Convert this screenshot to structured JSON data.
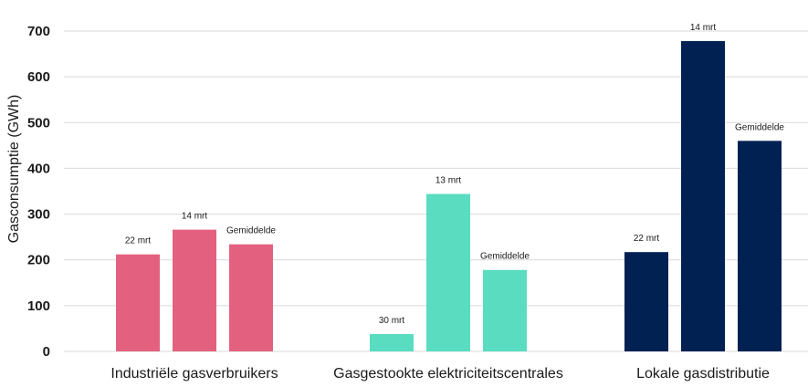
{
  "chart_data": {
    "type": "bar",
    "ylabel": "Gasconsumptie (GWh)",
    "ylim": [
      0,
      700
    ],
    "yticks": [
      0,
      100,
      200,
      300,
      400,
      500,
      600,
      700
    ],
    "grid": true,
    "groups": [
      {
        "category": "Industriële gasverbruikers",
        "color": "#e3617f",
        "bars": [
          {
            "label": "22 mrt",
            "value": 212
          },
          {
            "label": "14 mrt",
            "value": 266
          },
          {
            "label": "Gemiddelde",
            "value": 234
          }
        ]
      },
      {
        "category": "Gasgestookte elektriciteitscentrales",
        "color": "#5adcc1",
        "bars": [
          {
            "label": "30 mrt",
            "value": 38
          },
          {
            "label": "13 mrt",
            "value": 344
          },
          {
            "label": "Gemiddelde",
            "value": 178
          }
        ]
      },
      {
        "category": "Lokale gasdistributie",
        "color": "#002152",
        "bars": [
          {
            "label": "22 mrt",
            "value": 217
          },
          {
            "label": "14 mrt",
            "value": 678
          },
          {
            "label": "Gemiddelde",
            "value": 460
          }
        ]
      }
    ]
  }
}
